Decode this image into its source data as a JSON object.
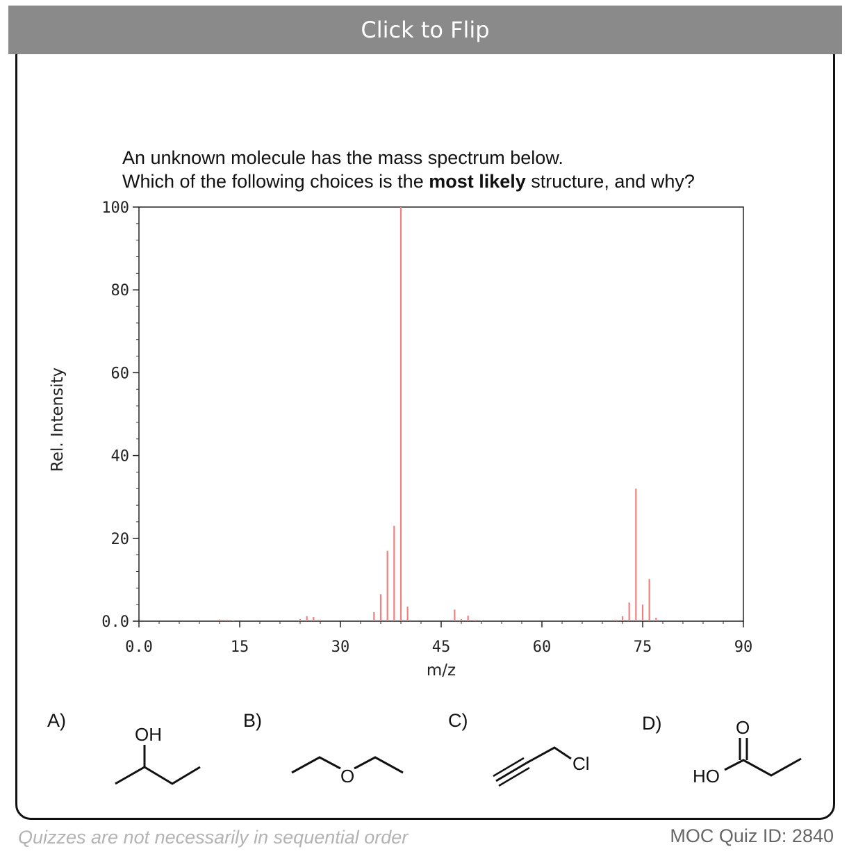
{
  "flip_button": {
    "label": "Click to Flip"
  },
  "question": {
    "line1": "An unknown molecule has the mass spectrum below.",
    "line2_pre": "Which of the following choices is the ",
    "line2_bold": "most likely",
    "line2_post": " structure, and why?"
  },
  "chart_data": {
    "type": "bar",
    "xlabel": "m/z",
    "ylabel": "Rel. Intensity",
    "xlim": [
      0,
      90
    ],
    "ylim": [
      0,
      100
    ],
    "x_ticks": [
      "0.0",
      "15",
      "30",
      "45",
      "60",
      "75",
      "90"
    ],
    "y_ticks": [
      "0.0",
      "20",
      "40",
      "60",
      "80",
      "100"
    ],
    "bar_color": "#f08080",
    "peaks": [
      {
        "mz": 12,
        "value": 0.4
      },
      {
        "mz": 13,
        "value": 0.3
      },
      {
        "mz": 14,
        "value": 0.2
      },
      {
        "mz": 24,
        "value": 0.5
      },
      {
        "mz": 25,
        "value": 1.2
      },
      {
        "mz": 26,
        "value": 1.0
      },
      {
        "mz": 27,
        "value": 0.3
      },
      {
        "mz": 35,
        "value": 2.2
      },
      {
        "mz": 36,
        "value": 6.5
      },
      {
        "mz": 37,
        "value": 17
      },
      {
        "mz": 38,
        "value": 23
      },
      {
        "mz": 39,
        "value": 100
      },
      {
        "mz": 40,
        "value": 3.5
      },
      {
        "mz": 47,
        "value": 2.8
      },
      {
        "mz": 48,
        "value": 0.5
      },
      {
        "mz": 49,
        "value": 1.3
      },
      {
        "mz": 50,
        "value": 0.3
      },
      {
        "mz": 51,
        "value": 0.2
      },
      {
        "mz": 71,
        "value": 0.3
      },
      {
        "mz": 72,
        "value": 1.2
      },
      {
        "mz": 73,
        "value": 4.5
      },
      {
        "mz": 74,
        "value": 32
      },
      {
        "mz": 75,
        "value": 4
      },
      {
        "mz": 76,
        "value": 10.2
      },
      {
        "mz": 77,
        "value": 0.8
      }
    ]
  },
  "choices": [
    {
      "label": "A)",
      "atom": "OH"
    },
    {
      "label": "B)",
      "atom": "O"
    },
    {
      "label": "C)",
      "atom": "Cl"
    },
    {
      "label": "D)",
      "atom_top": "O",
      "atom_left": "HO"
    }
  ],
  "footer": {
    "note": "Quizzes are not necessarily in sequential order",
    "quiz_id": "MOC Quiz ID: 2840"
  }
}
